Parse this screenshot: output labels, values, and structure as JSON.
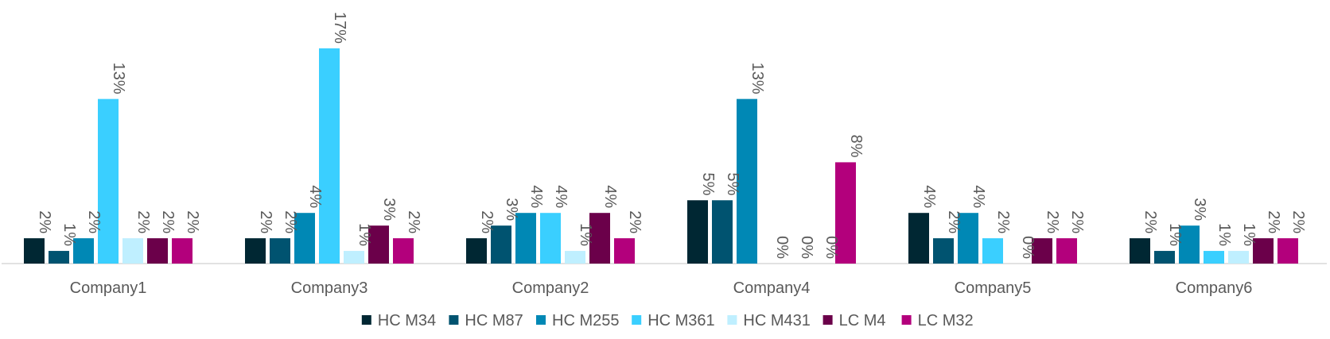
{
  "chart_data": {
    "type": "bar",
    "categories": [
      "Company1",
      "Company3",
      "Company2",
      "Company4",
      "Company5",
      "Company6"
    ],
    "series": [
      {
        "name": "HC M34",
        "color": "#002733",
        "values": [
          2,
          2,
          2,
          5,
          4,
          2
        ],
        "labels": [
          "2%",
          "2%",
          "2%",
          "5%",
          "4%",
          "2%"
        ]
      },
      {
        "name": "HC M87",
        "color": "#005370",
        "values": [
          1,
          2,
          3,
          5,
          2,
          1
        ],
        "labels": [
          "1%",
          "2%",
          "3%",
          "5%",
          "2%",
          "1%"
        ]
      },
      {
        "name": "HC M255",
        "color": "#0088B5",
        "values": [
          2,
          4,
          4,
          13,
          4,
          3
        ],
        "labels": [
          "2%",
          "4%",
          "4%",
          "13%",
          "4%",
          "3%"
        ]
      },
      {
        "name": "HC M361",
        "color": "#3ACFFF",
        "values": [
          13,
          17,
          4,
          0,
          2,
          1
        ],
        "labels": [
          "13%",
          "17%",
          "4%",
          "0%",
          "2%",
          "1%"
        ]
      },
      {
        "name": "HC M431",
        "color": "#BFEFFF",
        "values": [
          2,
          1,
          1,
          0,
          0,
          1
        ],
        "labels": [
          "2%",
          "1%",
          "1%",
          "0%",
          "0%",
          "1%"
        ]
      },
      {
        "name": "LC M4",
        "color": "#6B004A",
        "values": [
          2,
          3,
          4,
          0,
          2,
          2
        ],
        "labels": [
          "2%",
          "3%",
          "4%",
          "0%",
          "2%",
          "2%"
        ]
      },
      {
        "name": "LC M32",
        "color": "#B3007C",
        "values": [
          2,
          2,
          2,
          8,
          2,
          2
        ],
        "labels": [
          "2%",
          "2%",
          "2%",
          "8%",
          "2%",
          "2%"
        ]
      }
    ],
    "ylim": [
      0,
      17
    ],
    "grid": false,
    "legend": "bottom",
    "value_format": "percent"
  }
}
